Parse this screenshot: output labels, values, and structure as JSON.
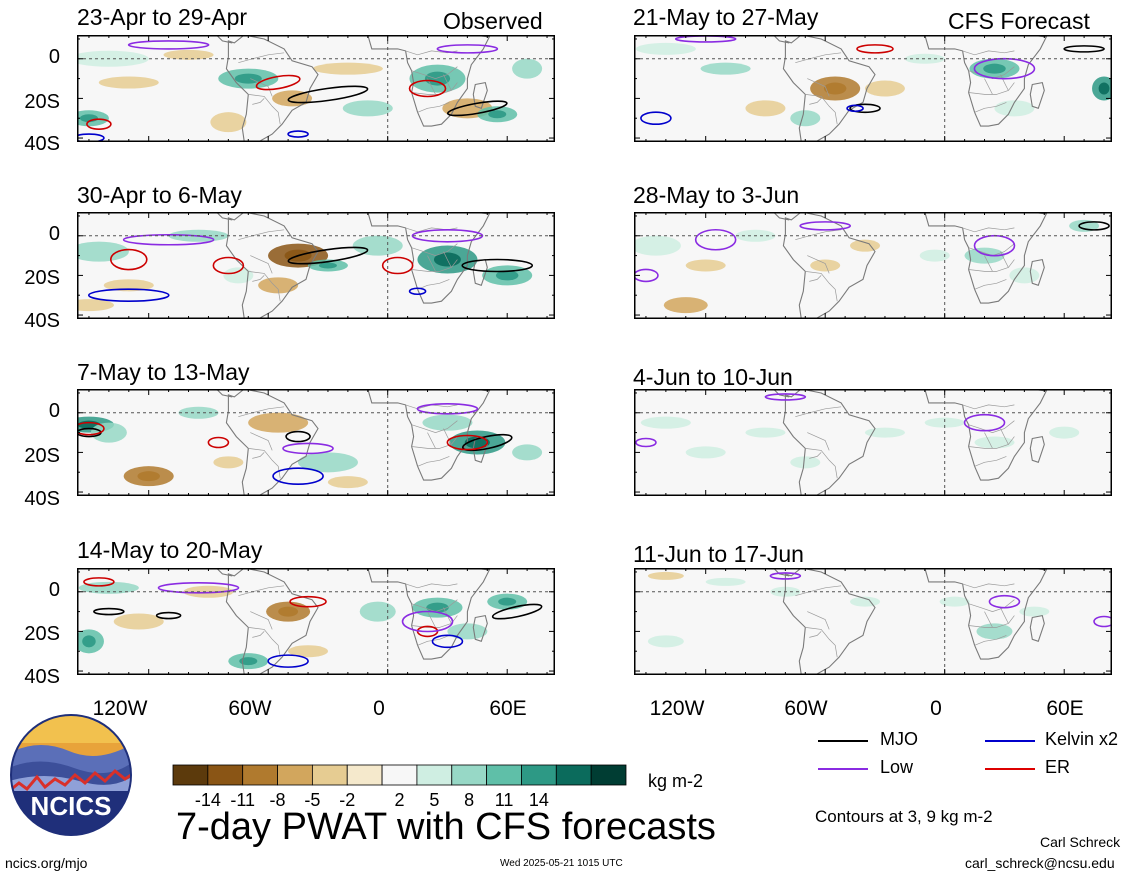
{
  "header": {
    "left_tag": "Observed",
    "right_tag": "CFS Forecast"
  },
  "panels": [
    {
      "title": "23-Apr to 29-Apr",
      "col": 0,
      "row": 0,
      "kind": "observed"
    },
    {
      "title": "30-Apr to 6-May",
      "col": 0,
      "row": 1,
      "kind": "observed"
    },
    {
      "title": "7-May to 13-May",
      "col": 0,
      "row": 2,
      "kind": "observed"
    },
    {
      "title": "14-May to 20-May",
      "col": 0,
      "row": 3,
      "kind": "observed"
    },
    {
      "title": "21-May to 27-May",
      "col": 1,
      "row": 0,
      "kind": "forecast"
    },
    {
      "title": "28-May to 3-Jun",
      "col": 1,
      "row": 1,
      "kind": "forecast"
    },
    {
      "title": "4-Jun to 10-Jun",
      "col": 1,
      "row": 2,
      "kind": "forecast"
    },
    {
      "title": "11-Jun to 17-Jun",
      "col": 1,
      "row": 3,
      "kind": "forecast"
    }
  ],
  "axes": {
    "y_labels": [
      "0",
      "20S",
      "40S"
    ],
    "x_labels": [
      "120W",
      "60W",
      "0",
      "60E"
    ]
  },
  "legend": {
    "items": [
      {
        "label": "MJO",
        "color": "#000000"
      },
      {
        "label": "Kelvin x2",
        "color": "#0000cc"
      },
      {
        "label": "Low",
        "color": "#8a2be2"
      },
      {
        "label": "ER",
        "color": "#dd0000"
      }
    ],
    "contours_note": "Contours at 3, 9 kg m-2"
  },
  "colorbar": {
    "colors": [
      "#5c3a0c",
      "#8a5515",
      "#b07a2e",
      "#d2a65d",
      "#e6cc92",
      "#f5e9cc",
      "#f7f7f7",
      "#cfeee2",
      "#97d8c6",
      "#5fbfa8",
      "#2d9985",
      "#0b6b5c",
      "#003d33"
    ],
    "labels": [
      "-14",
      "-11",
      "-8",
      "-5",
      "-2",
      "2",
      "5",
      "8",
      "11",
      "14"
    ],
    "units": "kg m-2"
  },
  "footer": {
    "main_title": "7-day PWAT with CFS forecasts",
    "logo_text": "NCICS",
    "url": "ncics.org/mjo",
    "timestamp": "Wed 2025-05-21 1015 UTC",
    "author": "Carl Schreck",
    "email": "carl_schreck@ncsu.edu"
  }
}
